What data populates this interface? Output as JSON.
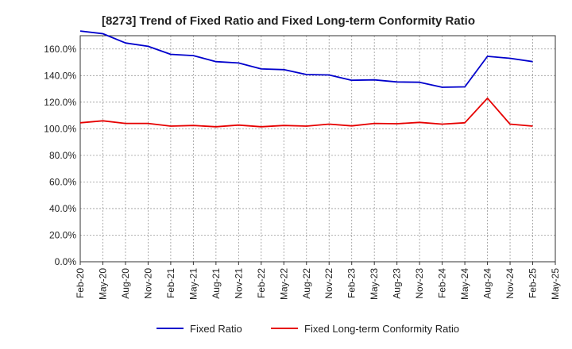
{
  "chart_data": {
    "type": "line",
    "title": "[8273]  Trend of Fixed Ratio and Fixed Long-term Conformity Ratio",
    "xlabel": "",
    "ylabel": "",
    "ylim": [
      0,
      170
    ],
    "yticks": [
      0,
      20,
      40,
      60,
      80,
      100,
      120,
      140,
      160
    ],
    "ytick_labels": [
      "0.0%",
      "20.0%",
      "40.0%",
      "60.0%",
      "80.0%",
      "100.0%",
      "120.0%",
      "140.0%",
      "160.0%"
    ],
    "categories": [
      "Feb-20",
      "May-20",
      "Aug-20",
      "Nov-20",
      "Feb-21",
      "May-21",
      "Aug-21",
      "Nov-21",
      "Feb-22",
      "May-22",
      "Aug-22",
      "Nov-22",
      "Feb-23",
      "May-23",
      "Aug-23",
      "Nov-23",
      "Feb-24",
      "May-24",
      "Aug-24",
      "Nov-24",
      "Feb-25",
      "May-25"
    ],
    "grid": true,
    "legend_position": "bottom",
    "series": [
      {
        "name": "Fixed Ratio",
        "color": "#0000cc",
        "values": [
          173.5,
          171.5,
          164.5,
          162.0,
          156.0,
          155.0,
          150.5,
          149.5,
          145.0,
          144.5,
          140.8,
          140.5,
          136.5,
          136.8,
          135.2,
          135.0,
          131.2,
          131.5,
          154.5,
          153.0,
          150.5,
          null
        ]
      },
      {
        "name": "Fixed Long-term Conformity Ratio",
        "color": "#e60000",
        "values": [
          104.5,
          106.0,
          104.0,
          104.0,
          102.0,
          102.5,
          101.5,
          102.8,
          101.5,
          102.5,
          102.0,
          103.5,
          102.2,
          104.0,
          103.8,
          104.8,
          103.5,
          104.5,
          123.0,
          103.5,
          102.0,
          null
        ]
      }
    ]
  }
}
